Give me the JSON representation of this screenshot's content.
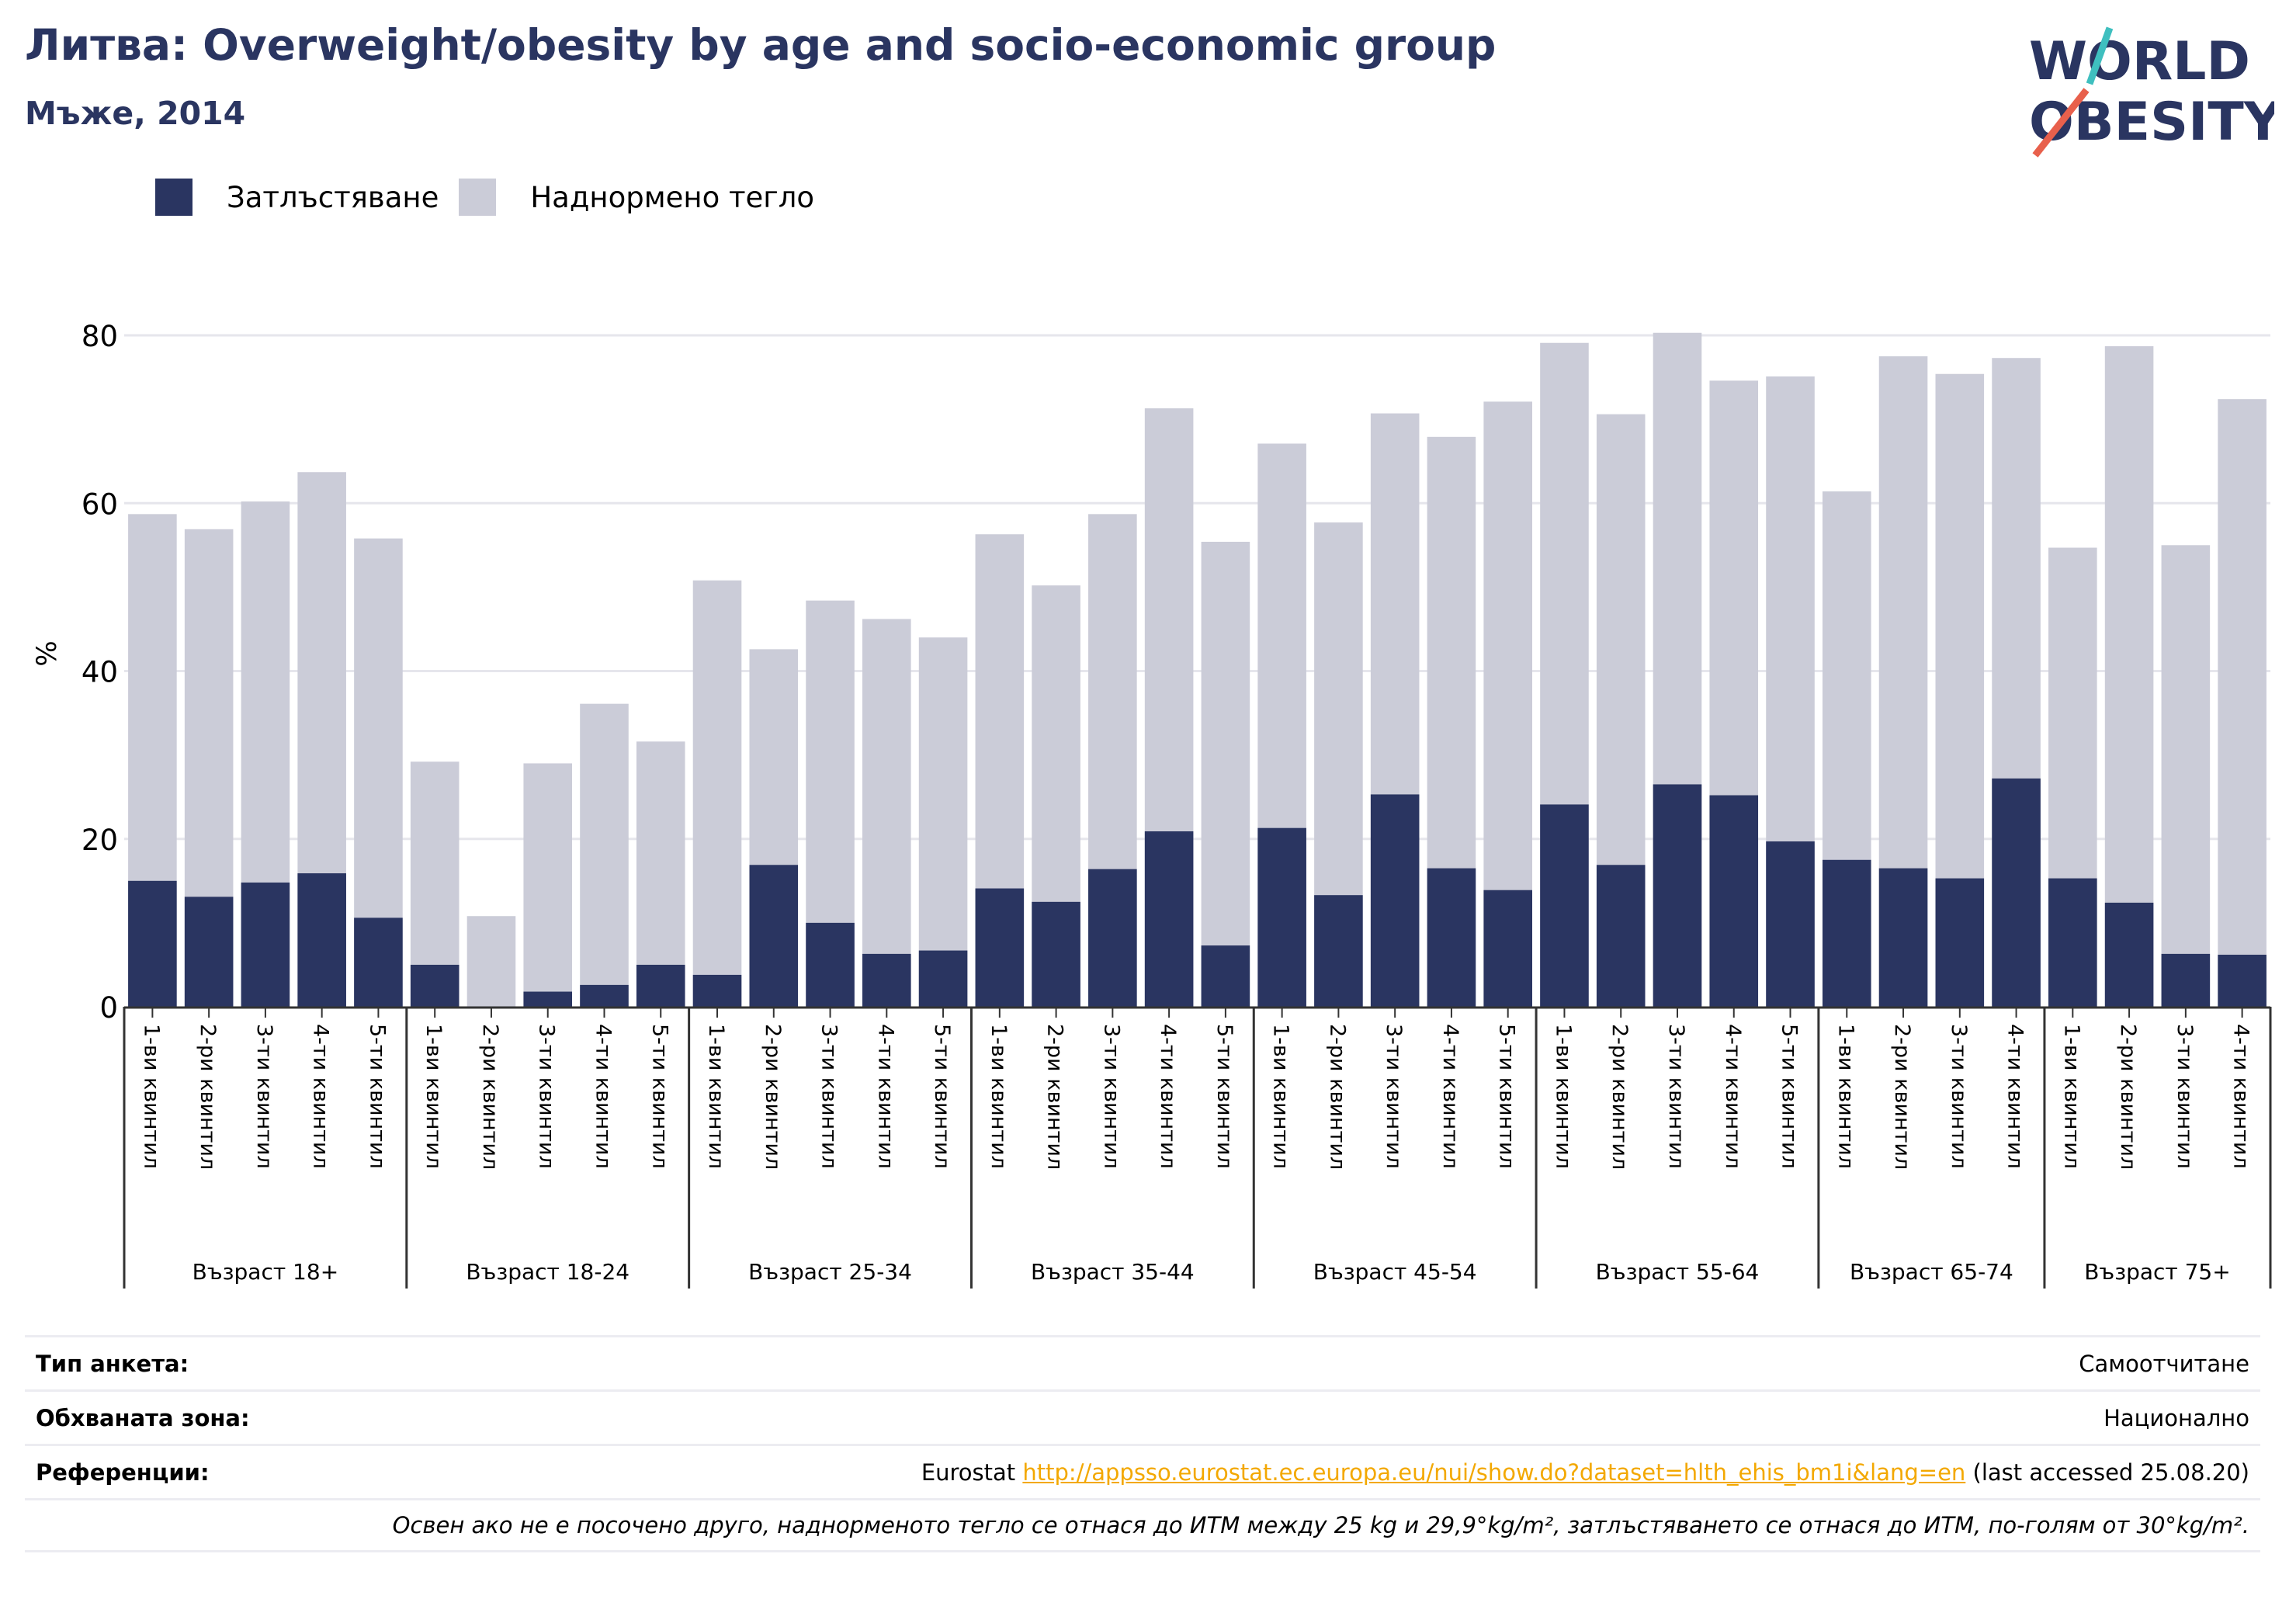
{
  "header": {
    "title": "Литва: Overweight/obesity by age and socio-economic group",
    "subtitle": "Мъже, 2014"
  },
  "logo": {
    "line1": "WORLD",
    "line2": "OBESITY"
  },
  "colors": {
    "obesity": "#2a3561",
    "overweight": "#cbccd8",
    "accent_red": "#e8604c",
    "accent_teal": "#3fbfbf"
  },
  "legend": {
    "obesity": "Затлъстяване",
    "overweight": "Наднормено тегло"
  },
  "chart_data": {
    "type": "bar",
    "stacked": true,
    "ylabel": "%",
    "ylim": [
      0,
      80
    ],
    "yticks": [
      0,
      20,
      40,
      60,
      80
    ],
    "grid": true,
    "legend_position": "top-left",
    "groups": [
      {
        "label": "Възраст 18+",
        "categories": [
          "1-ви квинтил",
          "2-ри квинтил",
          "3-ти квинтил",
          "4-ти квинтил",
          "5-ти квинтил"
        ],
        "obesity": [
          15.0,
          13.1,
          14.8,
          15.9,
          10.6
        ],
        "total": [
          58.7,
          56.9,
          60.2,
          63.7,
          55.8
        ]
      },
      {
        "label": "Възраст 18-24",
        "categories": [
          "1-ви квинтил",
          "2-ри квинтил",
          "3-ти квинтил",
          "4-ти квинтил",
          "5-ти квинтил"
        ],
        "obesity": [
          5.0,
          0.0,
          1.8,
          2.6,
          5.0
        ],
        "total": [
          29.2,
          10.8,
          29.0,
          36.1,
          31.6
        ]
      },
      {
        "label": "Възраст 25-34",
        "categories": [
          "1-ви квинтил",
          "2-ри квинтил",
          "3-ти квинтил",
          "4-ти квинтил",
          "5-ти квинтил"
        ],
        "obesity": [
          3.8,
          16.9,
          10.0,
          6.3,
          6.7
        ],
        "total": [
          50.8,
          42.6,
          48.4,
          46.2,
          44.0
        ]
      },
      {
        "label": "Възраст 35-44",
        "categories": [
          "1-ви квинтил",
          "2-ри квинтил",
          "3-ти квинтил",
          "4-ти квинтил",
          "5-ти квинтил"
        ],
        "obesity": [
          14.1,
          12.5,
          16.4,
          20.9,
          7.3
        ],
        "total": [
          56.3,
          50.2,
          58.7,
          71.3,
          55.4
        ]
      },
      {
        "label": "Възраст 45-54",
        "categories": [
          "1-ви квинтил",
          "2-ри квинтил",
          "3-ти квинтил",
          "4-ти квинтил",
          "5-ти квинтил"
        ],
        "obesity": [
          21.3,
          13.3,
          25.3,
          16.5,
          13.9
        ],
        "total": [
          67.1,
          57.7,
          70.7,
          67.9,
          72.1
        ]
      },
      {
        "label": "Възраст 55-64",
        "categories": [
          "1-ви квинтил",
          "2-ри квинтил",
          "3-ти квинтил",
          "4-ти квинтил",
          "5-ти квинтил"
        ],
        "obesity": [
          24.1,
          16.9,
          26.5,
          25.2,
          19.7
        ],
        "total": [
          79.1,
          70.6,
          80.3,
          74.6,
          75.1
        ]
      },
      {
        "label": "Възраст 65-74",
        "categories": [
          "1-ви квинтил",
          "2-ри квинтил",
          "3-ти квинтил",
          "4-ти квинтил"
        ],
        "obesity": [
          17.5,
          16.5,
          15.3,
          27.2
        ],
        "total": [
          61.4,
          77.5,
          75.4,
          77.3
        ]
      },
      {
        "label": "Възраст 75+",
        "categories": [
          "1-ви квинтил",
          "2-ри квинтил",
          "3-ти квинтил",
          "4-ти квинтил"
        ],
        "obesity": [
          15.3,
          12.4,
          6.3,
          6.2
        ],
        "total": [
          54.7,
          78.7,
          55.0,
          72.4
        ]
      }
    ]
  },
  "footer": {
    "survey_type_label": "Тип анкета:",
    "survey_type_value": "Самоотчитане",
    "coverage_label": "Обхваната зона:",
    "coverage_value": "Национално",
    "references_label": "Референции:",
    "references_prefix": "Eurostat",
    "references_link": "http://appsso.eurostat.ec.europa.eu/nui/show.do?dataset=hlth_ehis_bm1i&lang=en",
    "references_suffix": "(last accessed 25.08.20)",
    "note": "Освен ако не е посочено друго, наднорменото тегло се отнася до ИТМ между 25 kg и 29,9°kg/m², затлъстяването се отнася до ИТМ, по-голям от 30°kg/m²."
  }
}
